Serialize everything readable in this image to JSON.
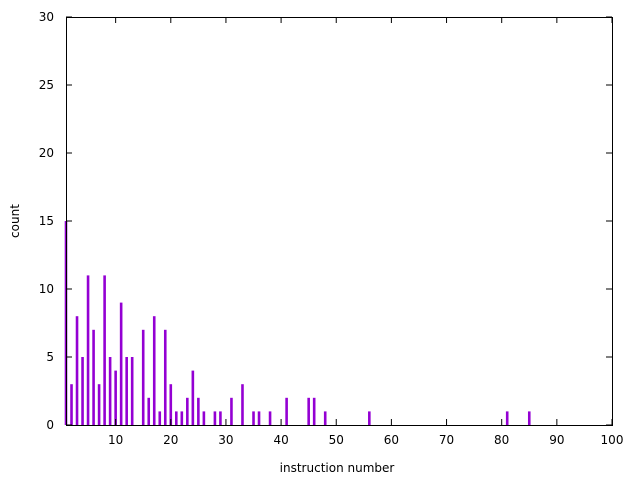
{
  "chart_data": {
    "type": "bar",
    "xlabel": "instruction number",
    "ylabel": "count",
    "xlim": [
      1,
      100
    ],
    "ylim": [
      0,
      30
    ],
    "x_ticks": [
      10,
      20,
      30,
      40,
      50,
      60,
      70,
      80,
      90,
      100
    ],
    "y_ticks": [
      0,
      5,
      10,
      15,
      20,
      25,
      30
    ],
    "grid": false,
    "bar_color": "#9400d3",
    "x": [
      1,
      2,
      3,
      4,
      5,
      6,
      7,
      8,
      9,
      10,
      11,
      12,
      13,
      15,
      16,
      17,
      18,
      19,
      20,
      21,
      22,
      23,
      24,
      25,
      26,
      28,
      29,
      31,
      33,
      35,
      36,
      38,
      41,
      45,
      46,
      48,
      56,
      81,
      85
    ],
    "values": [
      15,
      3,
      8,
      5,
      11,
      7,
      3,
      11,
      5,
      4,
      9,
      5,
      5,
      7,
      2,
      8,
      1,
      7,
      3,
      1,
      1,
      2,
      4,
      2,
      1,
      1,
      1,
      2,
      3,
      1,
      1,
      1,
      2,
      2,
      2,
      1,
      1,
      1,
      1
    ]
  }
}
